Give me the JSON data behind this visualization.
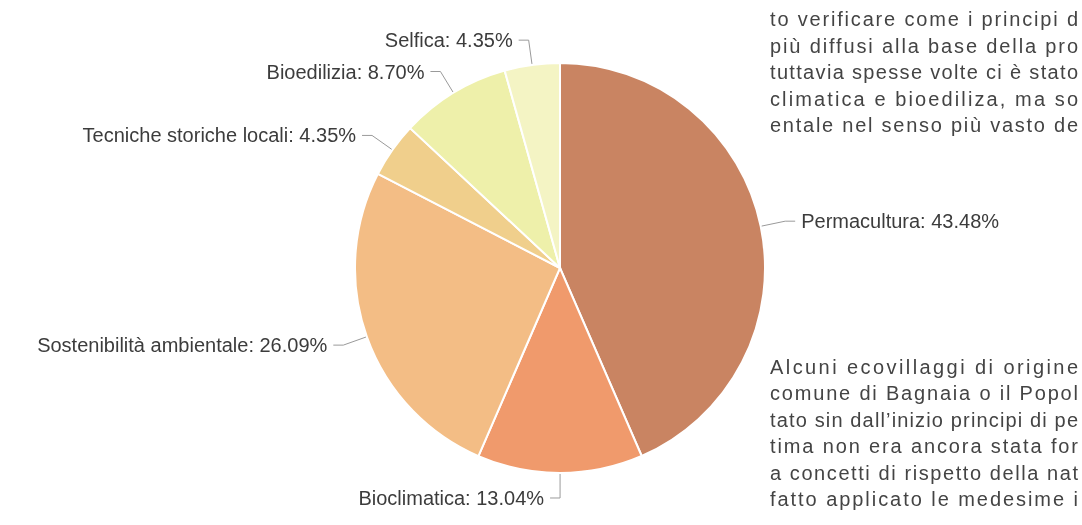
{
  "chart_data": {
    "type": "pie",
    "categories": [
      "Permacultura",
      "Bioclimatica",
      "Sostenibilità ambientale",
      "Tecniche storiche locali",
      "Bioedilizia",
      "Selfica"
    ],
    "values": [
      43.48,
      13.04,
      26.09,
      4.35,
      8.7,
      4.35
    ],
    "value_labels": [
      "43.48%",
      "13.04%",
      "26.09%",
      "4.35%",
      "8.70%",
      "4.35%"
    ],
    "colors": [
      "#c98462",
      "#f09a6c",
      "#f3bd85",
      "#f0cf8c",
      "#eef0aa",
      "#f4f4c4"
    ],
    "annotations": [
      "to verificare come i principi d\npiù diffusi alla base della pro\ntuttavia spesse volte ci è stato\nclimatica e bioediliza, ma so\nentale nel senso più vasto de",
      "Alcuni ecovillaggi di origine\ncomune di Bagnaia o il Popol\ntato sin dall’inizio principi di pe\ntima non era ancora stata for\na concetti di rispetto della nat\nfatto applicato le medesime i"
    ]
  }
}
